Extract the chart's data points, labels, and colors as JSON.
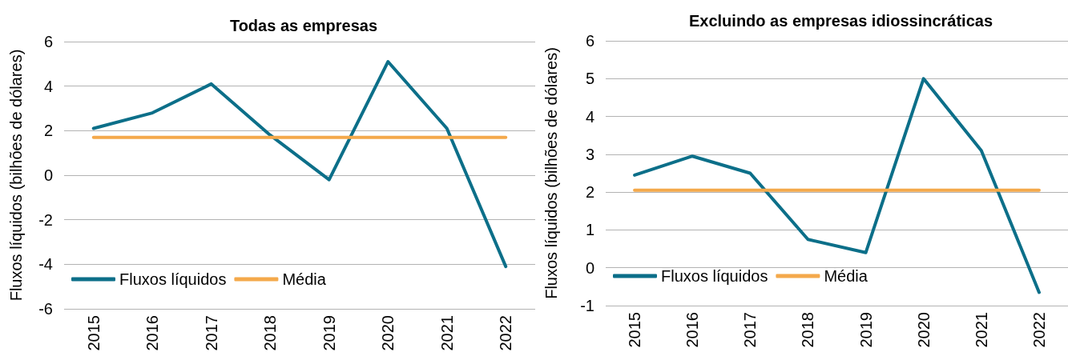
{
  "chart_data": [
    {
      "type": "line",
      "title": "Todas as empresas",
      "ylabel": "Fluxos líquidos (bilhões de dólares)",
      "categories": [
        "2015",
        "2016",
        "2017",
        "2018",
        "2019",
        "2020",
        "2021",
        "2022"
      ],
      "series": [
        {
          "name": "Fluxos líquidos",
          "color": "#0c6f89",
          "values": [
            2.1,
            2.8,
            4.1,
            1.8,
            -0.2,
            5.1,
            2.1,
            -4.1
          ]
        },
        {
          "name": "Média",
          "color": "#f4a94b",
          "values": [
            1.7,
            1.7,
            1.7,
            1.7,
            1.7,
            1.7,
            1.7,
            1.7
          ]
        }
      ],
      "ylim": [
        -6,
        6
      ],
      "yticks": [
        -6,
        -4,
        -2,
        0,
        2,
        4,
        6
      ],
      "grid": "y",
      "legend": "bottom left",
      "marker": "none"
    },
    {
      "type": "line",
      "title": "Excluindo as empresas idiossincráticas",
      "ylabel": "Fluxos líquidos (bilhões de dólares)",
      "categories": [
        "2015",
        "2016",
        "2017",
        "2018",
        "2019",
        "2020",
        "2021",
        "2022"
      ],
      "series": [
        {
          "name": "Fluxos líquidos",
          "color": "#0c6f89",
          "values": [
            2.45,
            2.95,
            2.5,
            0.75,
            0.4,
            5.0,
            3.1,
            -0.65
          ]
        },
        {
          "name": "Média",
          "color": "#f4a94b",
          "values": [
            2.05,
            2.05,
            2.05,
            2.05,
            2.05,
            2.05,
            2.05,
            2.05
          ]
        }
      ],
      "ylim": [
        -1,
        6
      ],
      "yticks": [
        -1,
        0,
        1,
        2,
        3,
        4,
        5,
        6
      ],
      "grid": "y",
      "legend": "bottom left",
      "marker": "none"
    }
  ]
}
